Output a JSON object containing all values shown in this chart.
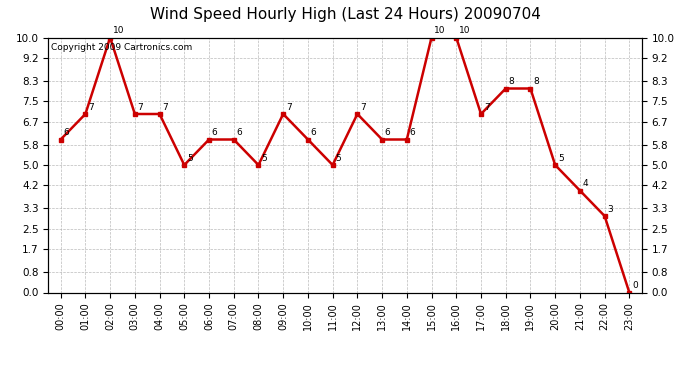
{
  "title": "Wind Speed Hourly High (Last 24 Hours) 20090704",
  "hours": [
    "00:00",
    "01:00",
    "02:00",
    "03:00",
    "04:00",
    "05:00",
    "06:00",
    "07:00",
    "08:00",
    "09:00",
    "10:00",
    "11:00",
    "12:00",
    "13:00",
    "14:00",
    "15:00",
    "16:00",
    "17:00",
    "18:00",
    "19:00",
    "20:00",
    "21:00",
    "22:00",
    "23:00"
  ],
  "values": [
    6,
    7,
    10,
    7,
    7,
    5,
    6,
    6,
    5,
    7,
    6,
    5,
    7,
    6,
    6,
    10,
    10,
    7,
    8,
    8,
    5,
    4,
    3,
    0
  ],
  "yticks": [
    0.0,
    0.8,
    1.7,
    2.5,
    3.3,
    4.2,
    5.0,
    5.8,
    6.7,
    7.5,
    8.3,
    9.2,
    10.0
  ],
  "line_color": "#cc0000",
  "marker_color": "#cc0000",
  "bg_color": "#ffffff",
  "plot_bg_color": "#ffffff",
  "grid_color": "#aaaaaa",
  "title_fontsize": 11,
  "copyright_text": "Copyright 2009 Cartronics.com",
  "ylim_min": 0.0,
  "ylim_max": 10.0
}
